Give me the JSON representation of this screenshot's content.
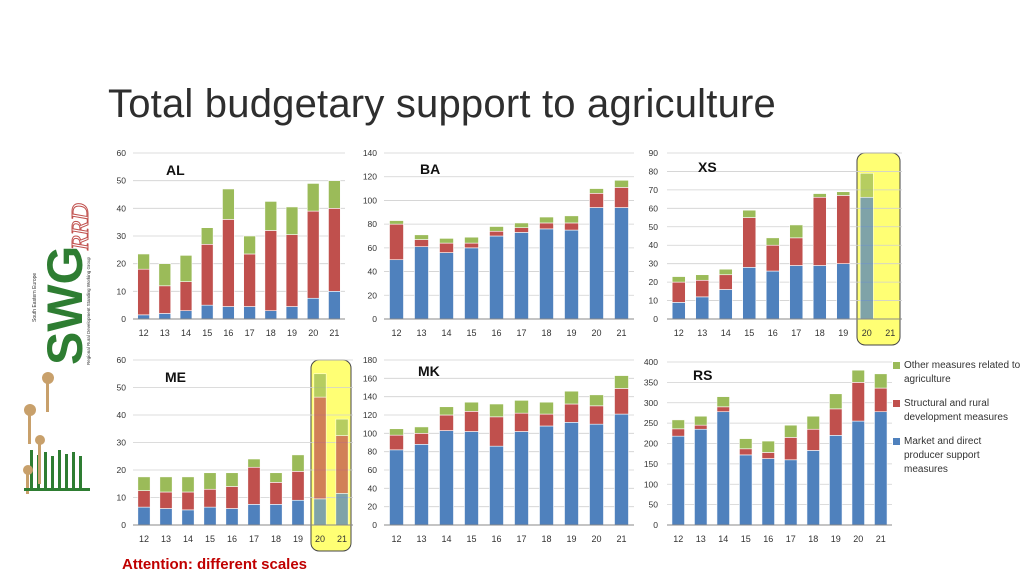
{
  "slide": {
    "title": "Total budgetary support to agriculture",
    "attention": "Attention: different scales",
    "logo_text": "SWG RRD",
    "logo_subtext": "Regional Rural Development Standing Working Group",
    "logo_region": "South Eastern Europe"
  },
  "colors": {
    "market": "#4f81bd",
    "structural": "#c0504d",
    "other": "#9bbb59",
    "highlight": "#ffff66",
    "highlight_border": "#333333"
  },
  "legend": [
    {
      "label": "Other measures related to agriculture",
      "color": "#9bbb59"
    },
    {
      "label": "Structural and rural development measures",
      "color": "#c0504d"
    },
    {
      "label": "Market and direct producer support measures",
      "color": "#4f81bd"
    }
  ],
  "chart_data": [
    {
      "type": "bar",
      "stacked": true,
      "name": "AL",
      "categories": [
        "12",
        "13",
        "14",
        "15",
        "16",
        "17",
        "18",
        "19",
        "20",
        "21"
      ],
      "ylim": [
        0,
        60
      ],
      "yticks": [
        0,
        10,
        20,
        30,
        40,
        50,
        60
      ],
      "highlight_categories": [],
      "series": [
        {
          "name": "Market and direct producer support measures",
          "values": [
            1.5,
            2,
            3,
            5,
            4.5,
            4.5,
            3,
            4.5,
            7.5,
            10
          ]
        },
        {
          "name": "Structural and rural development measures",
          "values": [
            16.5,
            10,
            10.5,
            22,
            31.5,
            19,
            29,
            26,
            31.5,
            30
          ]
        },
        {
          "name": "Other measures related to agriculture",
          "values": [
            5.5,
            8,
            9.5,
            6,
            11,
            6.5,
            10.5,
            10,
            10,
            10
          ]
        }
      ]
    },
    {
      "type": "bar",
      "stacked": true,
      "name": "BA",
      "categories": [
        "12",
        "13",
        "14",
        "15",
        "16",
        "17",
        "18",
        "19",
        "20",
        "21"
      ],
      "ylim": [
        0,
        140
      ],
      "yticks": [
        0,
        20,
        40,
        60,
        80,
        100,
        120,
        140
      ],
      "highlight_categories": [],
      "series": [
        {
          "name": "Market and direct producer support measures",
          "values": [
            50,
            61,
            56,
            60,
            70,
            73,
            76,
            75,
            94,
            94
          ]
        },
        {
          "name": "Structural and rural development measures",
          "values": [
            30,
            6,
            8,
            4,
            4,
            4,
            5,
            6,
            12,
            17
          ]
        },
        {
          "name": "Other measures related to agriculture",
          "values": [
            3,
            4,
            4,
            5,
            4,
            4,
            5,
            6,
            4,
            6
          ]
        }
      ]
    },
    {
      "type": "bar",
      "stacked": true,
      "name": "XS",
      "categories": [
        "12",
        "13",
        "14",
        "15",
        "16",
        "17",
        "18",
        "19",
        "20",
        "21"
      ],
      "ylim": [
        0,
        90
      ],
      "yticks": [
        0,
        10,
        20,
        30,
        40,
        50,
        60,
        70,
        80,
        90
      ],
      "highlight_categories": [
        "20",
        "21"
      ],
      "series": [
        {
          "name": "Market and direct producer support measures",
          "values": [
            9,
            12,
            16,
            28,
            26,
            29,
            29,
            30,
            66,
            0
          ]
        },
        {
          "name": "Structural and rural development measures",
          "values": [
            11,
            9,
            8,
            27,
            14,
            15,
            37,
            37,
            0,
            0
          ]
        },
        {
          "name": "Other measures related to agriculture",
          "values": [
            3,
            3,
            3,
            4,
            4,
            7,
            2,
            2,
            13,
            0
          ]
        }
      ]
    },
    {
      "type": "bar",
      "stacked": true,
      "name": "ME",
      "categories": [
        "12",
        "13",
        "14",
        "15",
        "16",
        "17",
        "18",
        "19",
        "20",
        "21"
      ],
      "ylim": [
        0,
        60
      ],
      "yticks": [
        0,
        10,
        20,
        30,
        40,
        50,
        60
      ],
      "highlight_categories": [
        "20",
        "21"
      ],
      "series": [
        {
          "name": "Market and direct producer support measures",
          "values": [
            6.5,
            6,
            5.5,
            6.5,
            6,
            7.5,
            7.5,
            9,
            9.5,
            11.5
          ]
        },
        {
          "name": "Structural and rural development measures",
          "values": [
            6,
            6,
            6.5,
            6.5,
            8,
            13.5,
            8,
            10.5,
            37,
            21
          ]
        },
        {
          "name": "Other measures related to agriculture",
          "values": [
            5,
            5.5,
            5.5,
            6,
            5,
            3,
            3.5,
            6,
            8.5,
            6
          ]
        }
      ]
    },
    {
      "type": "bar",
      "stacked": true,
      "name": "MK",
      "categories": [
        "12",
        "13",
        "14",
        "15",
        "16",
        "17",
        "18",
        "19",
        "20",
        "21"
      ],
      "ylim": [
        0,
        180
      ],
      "yticks": [
        0,
        20,
        40,
        60,
        80,
        100,
        120,
        140,
        160,
        180
      ],
      "highlight_categories": [],
      "series": [
        {
          "name": "Market and direct producer support measures",
          "values": [
            82,
            88,
            103,
            102,
            86,
            102,
            108,
            112,
            110,
            121
          ]
        },
        {
          "name": "Structural and rural development measures",
          "values": [
            16,
            12,
            17,
            22,
            32,
            20,
            13,
            20,
            20,
            28
          ]
        },
        {
          "name": "Other measures related to agriculture",
          "values": [
            7,
            7,
            9,
            10,
            14,
            14,
            13,
            14,
            12,
            14
          ]
        }
      ]
    },
    {
      "type": "bar",
      "stacked": true,
      "name": "RS",
      "categories": [
        "12",
        "13",
        "14",
        "15",
        "16",
        "17",
        "18",
        "19",
        "20",
        "21"
      ],
      "ylim": [
        0,
        400
      ],
      "yticks": [
        0,
        50,
        100,
        150,
        200,
        250,
        300,
        350,
        400
      ],
      "highlight_categories": [],
      "series": [
        {
          "name": "Market and direct producer support measures",
          "values": [
            218,
            235,
            278,
            172,
            163,
            160,
            183,
            220,
            255,
            278
          ]
        },
        {
          "name": "Structural and rural development measures",
          "values": [
            18,
            10,
            12,
            15,
            15,
            55,
            52,
            65,
            95,
            58
          ]
        },
        {
          "name": "Other measures related to agriculture",
          "values": [
            22,
            22,
            25,
            25,
            28,
            30,
            32,
            37,
            30,
            35
          ]
        }
      ]
    }
  ]
}
